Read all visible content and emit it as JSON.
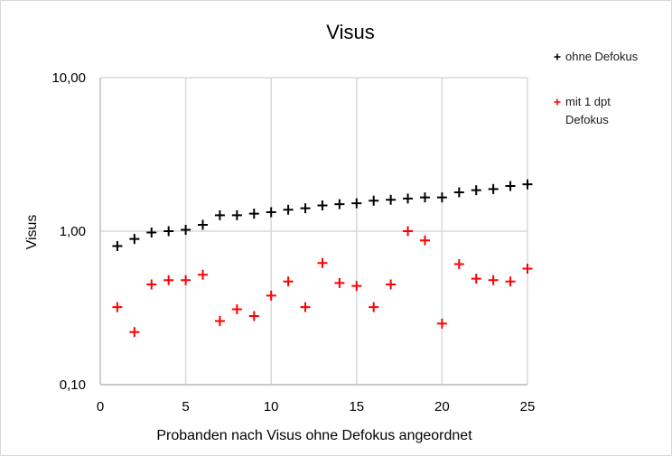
{
  "chart_data": {
    "type": "scatter",
    "title": "Visus",
    "xlabel": "Probanden nach Visus ohne Defokus angeordnet",
    "ylabel": "Visus",
    "x_scale": "linear",
    "y_scale": "log",
    "xlim": [
      0,
      25
    ],
    "ylim": [
      0.1,
      10
    ],
    "x_ticks": [
      0,
      5,
      10,
      15,
      20,
      25
    ],
    "x_tick_labels": [
      "0",
      "5",
      "10",
      "15",
      "20",
      "25"
    ],
    "y_ticks": [
      0.1,
      1,
      10
    ],
    "y_tick_labels": [
      "0,10",
      "1,00",
      "10,00"
    ],
    "grid": "vertical major gridlines",
    "legend_position": "right",
    "series": [
      {
        "name": "ohne Defokus",
        "color": "#000000",
        "marker": "plus",
        "x": [
          1,
          2,
          3,
          4,
          5,
          6,
          7,
          8,
          9,
          10,
          11,
          12,
          13,
          14,
          15,
          16,
          17,
          18,
          19,
          20,
          21,
          22,
          23,
          24,
          25
        ],
        "y": [
          0.8,
          0.89,
          0.98,
          1.0,
          1.02,
          1.1,
          1.27,
          1.27,
          1.3,
          1.33,
          1.38,
          1.41,
          1.47,
          1.5,
          1.52,
          1.58,
          1.6,
          1.63,
          1.66,
          1.66,
          1.79,
          1.85,
          1.88,
          1.97,
          2.02
        ]
      },
      {
        "name": "mit 1 dpt Defokus",
        "color": "#ff0000",
        "marker": "plus",
        "x": [
          1,
          2,
          3,
          4,
          5,
          6,
          7,
          8,
          9,
          10,
          11,
          12,
          13,
          14,
          15,
          16,
          17,
          18,
          19,
          20,
          21,
          22,
          23,
          24,
          25
        ],
        "y": [
          0.32,
          0.22,
          0.45,
          0.48,
          0.48,
          0.52,
          0.26,
          0.31,
          0.28,
          0.38,
          0.47,
          0.32,
          0.62,
          0.46,
          0.44,
          0.32,
          0.45,
          1.0,
          0.87,
          0.25,
          0.61,
          0.49,
          0.48,
          0.47,
          0.57
        ]
      }
    ],
    "legend_entries": [
      {
        "lines": [
          "ohne Defokus"
        ],
        "color": "#000000"
      },
      {
        "lines": [
          "mit 1 dpt",
          "Defokus"
        ],
        "color": "#ff0000"
      }
    ]
  }
}
